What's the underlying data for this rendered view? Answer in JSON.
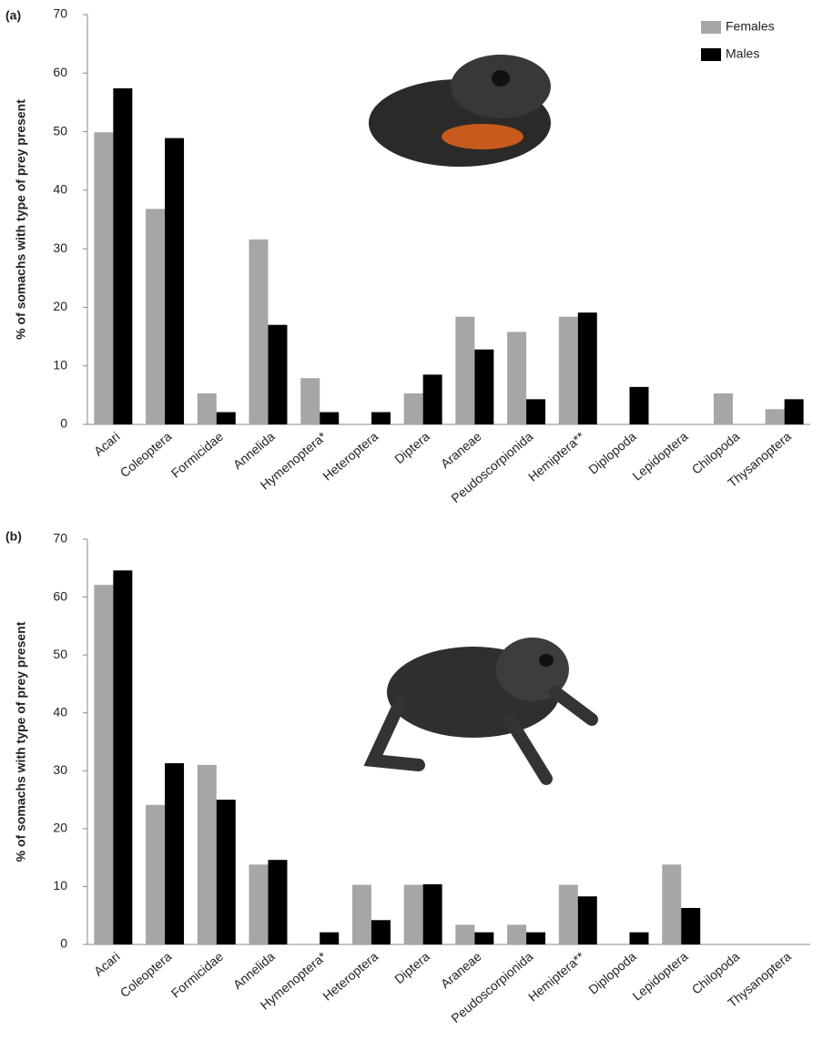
{
  "chart_data": [
    {
      "type": "bar",
      "panel_label": "(a)",
      "ylabel": "% of somachs with type of prey present",
      "categories": [
        "Acari",
        "Coleoptera",
        "Formicidae",
        "Annelida",
        "Hymenoptera*",
        "Heteroptera",
        "Diptera",
        "Araneae",
        "Peudoscorpionida",
        "Hemiptera**",
        "Diplopoda",
        "Lepidoptera",
        "Chilopoda",
        "Thysanoptera"
      ],
      "series": [
        {
          "name": "Females",
          "color": "#a6a6a6",
          "values": [
            49.9,
            36.8,
            5.3,
            31.6,
            7.9,
            0,
            5.3,
            18.4,
            15.8,
            18.4,
            0,
            0,
            5.3,
            2.6
          ]
        },
        {
          "name": "Males",
          "color": "#000000",
          "values": [
            57.4,
            48.9,
            2.1,
            17.0,
            2.1,
            2.1,
            8.5,
            12.8,
            4.3,
            19.1,
            6.4,
            0,
            0,
            4.3
          ]
        }
      ],
      "ylim": [
        0,
        70
      ],
      "yticks": [
        0,
        10,
        20,
        30,
        40,
        50,
        60,
        70
      ],
      "legend": "upper right"
    },
    {
      "type": "bar",
      "panel_label": "(b)",
      "ylabel": "% of somachs with type of prey present",
      "categories": [
        "Acari",
        "Coleoptera",
        "Formicidae",
        "Annelida",
        "Hymenoptera*",
        "Heteroptera",
        "Diptera",
        "Araneae",
        "Peudoscorpionida",
        "Hemiptera**",
        "Diplopoda",
        "Lepidoptera",
        "Chilopoda",
        "Thysanoptera"
      ],
      "series": [
        {
          "color": "#a6a6a6",
          "values": [
            62.1,
            24.1,
            31.0,
            13.8,
            0,
            10.3,
            10.3,
            3.4,
            3.4,
            10.3,
            0,
            13.8,
            0,
            0
          ]
        },
        {
          "color": "#000000",
          "values": [
            64.6,
            31.3,
            25.0,
            14.6,
            2.1,
            4.2,
            10.4,
            2.1,
            2.1,
            8.3,
            2.1,
            6.3,
            0,
            0
          ]
        }
      ],
      "ylim": [
        0,
        70
      ],
      "yticks": [
        0,
        10,
        20,
        30,
        40,
        50,
        60,
        70
      ]
    }
  ]
}
